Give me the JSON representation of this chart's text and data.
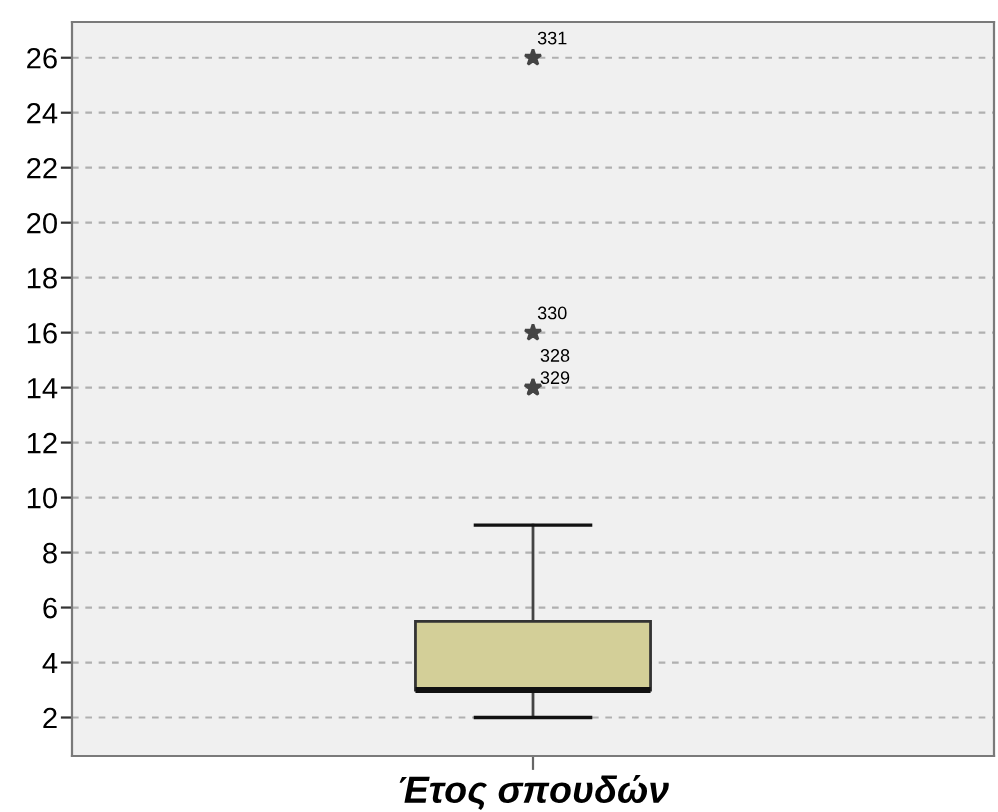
{
  "chart_data": {
    "type": "box",
    "categories": [
      "Έτος σπουδών"
    ],
    "boxes": [
      {
        "low": 2,
        "q1": 3,
        "median": 3,
        "q3": 5.5,
        "high": 9,
        "outliers": [
          26,
          16,
          14,
          14
        ]
      }
    ],
    "colors": [
      "#d3cf98"
    ],
    "marker": "star",
    "ylim": [
      0.6,
      27.3
    ],
    "yticks": [
      2,
      4,
      6,
      8,
      10,
      12,
      14,
      16,
      18,
      20,
      22,
      24,
      26
    ],
    "grid": "y",
    "annotations": [
      "331",
      "330",
      "328",
      "329"
    ]
  }
}
